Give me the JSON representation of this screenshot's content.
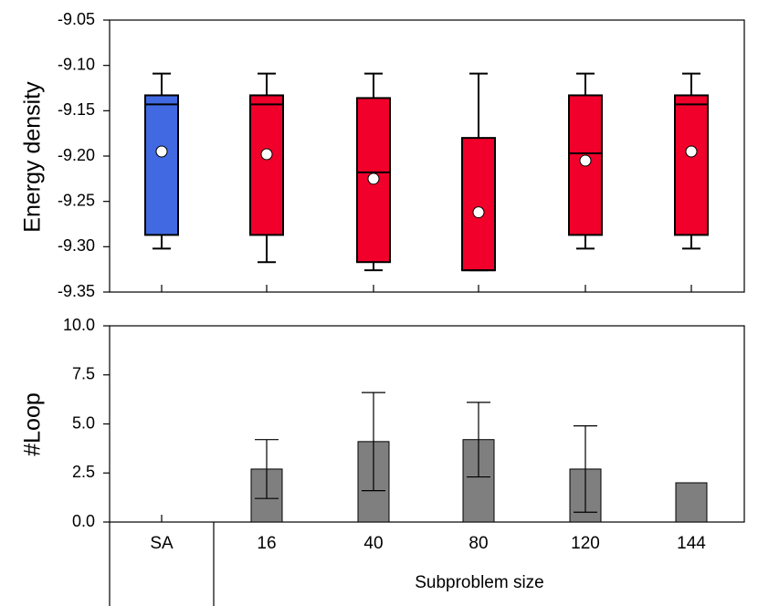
{
  "chart_data": [
    {
      "type": "box",
      "ylabel": "Energy density",
      "ylim": [
        -9.35,
        -9.05
      ],
      "yticks": [
        "-9.05",
        "-9.10",
        "-9.15",
        "-9.20",
        "-9.25",
        "-9.30",
        "-9.35"
      ],
      "ytick_values": [
        -9.05,
        -9.1,
        -9.15,
        -9.2,
        -9.25,
        -9.3,
        -9.35
      ],
      "categories": [
        "SA",
        "16",
        "40",
        "80",
        "120",
        "144"
      ],
      "boxes": [
        {
          "whisker_high": -9.109,
          "q3": -9.133,
          "median": -9.143,
          "q1": -9.287,
          "whisker_low": -9.302,
          "mean": -9.195,
          "color": "#4169e1"
        },
        {
          "whisker_high": -9.109,
          "q3": -9.133,
          "median": -9.143,
          "q1": -9.287,
          "whisker_low": -9.317,
          "mean": -9.198,
          "color": "#f0002a"
        },
        {
          "whisker_high": -9.109,
          "q3": -9.136,
          "median": -9.218,
          "q1": -9.317,
          "whisker_low": -9.326,
          "mean": -9.225,
          "color": "#f0002a"
        },
        {
          "whisker_high": -9.109,
          "q3": -9.18,
          "median": -9.326,
          "q1": -9.326,
          "whisker_low": -9.326,
          "mean": -9.262,
          "color": "#f0002a"
        },
        {
          "whisker_high": -9.109,
          "q3": -9.133,
          "median": -9.197,
          "q1": -9.287,
          "whisker_low": -9.302,
          "mean": -9.205,
          "color": "#f0002a"
        },
        {
          "whisker_high": -9.109,
          "q3": -9.133,
          "median": -9.143,
          "q1": -9.287,
          "whisker_low": -9.302,
          "mean": -9.195,
          "color": "#f0002a"
        }
      ]
    },
    {
      "type": "bar",
      "ylabel": "#Loop",
      "xlabel": "Subproblem size",
      "ylim": [
        0,
        10
      ],
      "yticks": [
        "0.0",
        "2.5",
        "5.0",
        "7.5",
        "10.0"
      ],
      "ytick_values": [
        0,
        2.5,
        5.0,
        7.5,
        10.0
      ],
      "categories": [
        "SA",
        "16",
        "40",
        "80",
        "120",
        "144"
      ],
      "values": [
        0,
        2.7,
        4.1,
        4.2,
        2.7,
        2.0
      ],
      "error_low": [
        0,
        1.2,
        1.6,
        2.3,
        0.5,
        2.0
      ],
      "error_high": [
        0,
        4.2,
        6.6,
        6.1,
        4.9,
        2.0
      ],
      "bar_color": "#7f7f7f"
    }
  ]
}
